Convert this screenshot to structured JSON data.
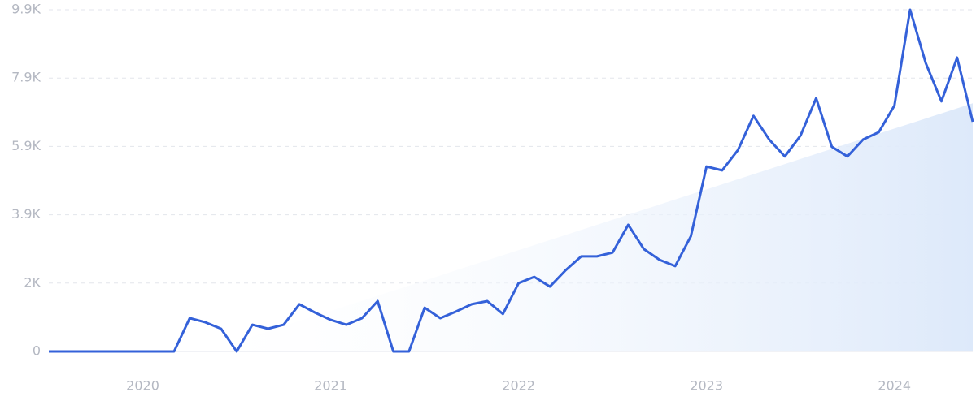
{
  "chart_data": {
    "type": "line",
    "categories": [
      null,
      null,
      null,
      null,
      null,
      null,
      "2020",
      null,
      null,
      null,
      null,
      null,
      null,
      null,
      null,
      null,
      null,
      null,
      "2021",
      null,
      null,
      null,
      null,
      null,
      null,
      null,
      null,
      null,
      null,
      null,
      "2022",
      null,
      null,
      null,
      null,
      null,
      null,
      null,
      null,
      null,
      null,
      null,
      "2023",
      null,
      null,
      null,
      null,
      null,
      null,
      null,
      null,
      null,
      null,
      null,
      "2024",
      null,
      null,
      null,
      null,
      null
    ],
    "series": [
      {
        "color": "#3461d9",
        "values": [
          0,
          0,
          0,
          0,
          0,
          0,
          0,
          0,
          0,
          960,
          840,
          655,
          0,
          770,
          655,
          770,
          1360,
          1120,
          910,
          770,
          960,
          1450,
          0,
          0,
          1260,
          960,
          1150,
          1360,
          1450,
          1080,
          1970,
          2150,
          1870,
          2340,
          2740,
          2740,
          2850,
          3650,
          2950,
          2640,
          2460,
          3320,
          5330,
          5220,
          5800,
          6790,
          6110,
          5620,
          6220,
          7300,
          5900,
          5620,
          6110,
          6320,
          7090,
          9850,
          8310,
          7210,
          8470,
          6620
        ]
      }
    ],
    "trend": {
      "color": "#e4effc",
      "values": [
        null,
        null,
        null,
        null,
        null,
        null,
        null,
        null,
        null,
        null,
        0,
        146,
        292,
        438,
        584,
        730,
        876,
        1022,
        1168,
        1314,
        1460,
        1606,
        1752,
        1898,
        2044,
        2190,
        2336,
        2482,
        2628,
        2774,
        2920,
        3066,
        3212,
        3358,
        3504,
        3650,
        3796,
        3942,
        4088,
        4234,
        4380,
        4526,
        4672,
        4818,
        4964,
        5110,
        5256,
        5402,
        5548,
        5694,
        5840,
        5986,
        6132,
        6278,
        6424,
        6570,
        6716,
        6862,
        7008,
        7154
      ]
    },
    "ylim": [
      0,
      9850
    ],
    "yticks": [
      0,
      {
        "value": 1970,
        "label": "2K"
      },
      {
        "value": 3940,
        "label": "3.9K"
      },
      {
        "value": 5910,
        "label": "5.9K"
      },
      {
        "value": 7880,
        "label": "7.9K"
      },
      {
        "value": 9850,
        "label": "9.9K"
      }
    ],
    "grid": true
  }
}
